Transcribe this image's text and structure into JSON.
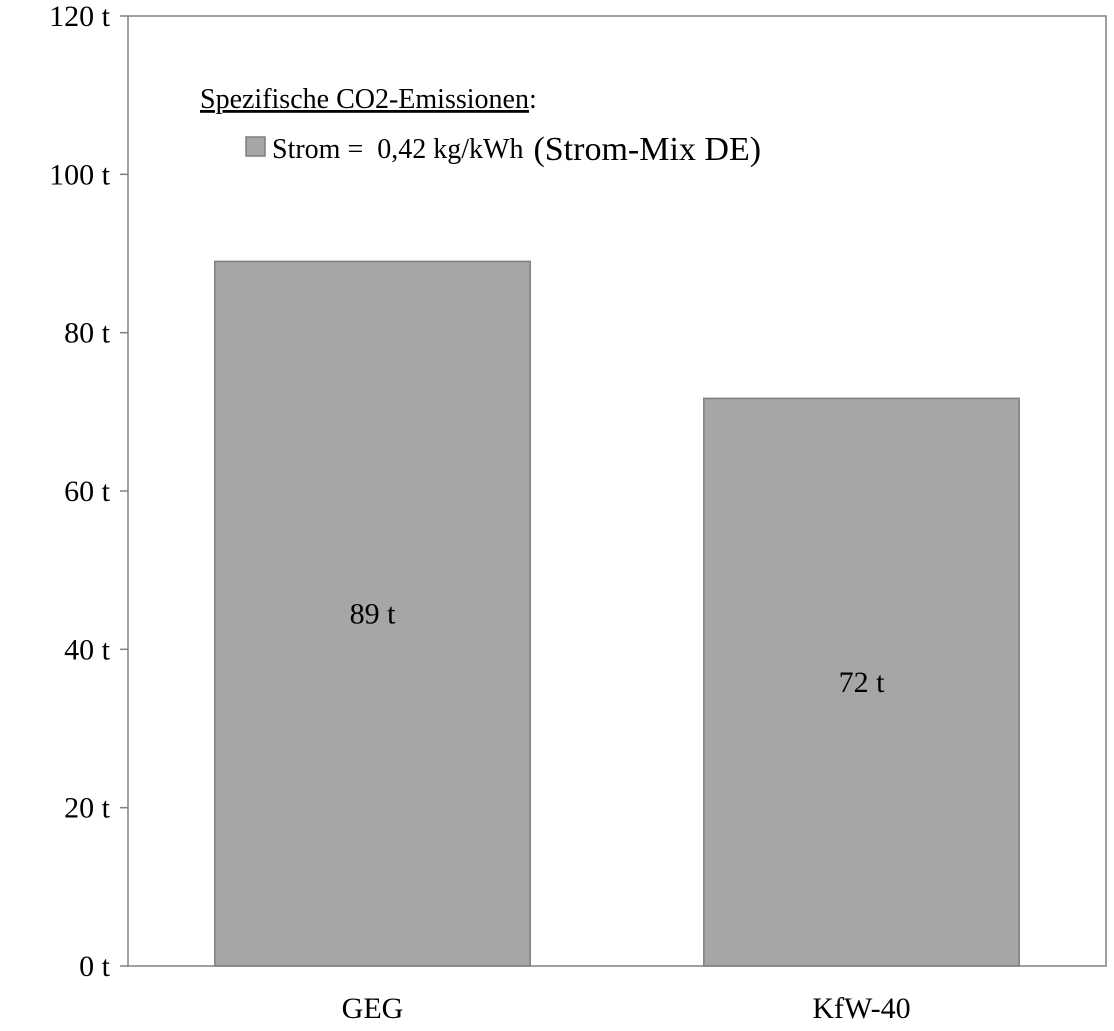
{
  "chart_data": {
    "type": "bar",
    "categories": [
      "GEG",
      "KfW-40"
    ],
    "values": [
      89,
      71.7
    ],
    "data_labels": [
      "89 t",
      "72 t"
    ],
    "ylim": [
      0,
      120
    ],
    "yticks": [
      0,
      20,
      40,
      60,
      80,
      100,
      120
    ],
    "ytick_labels": [
      "0 t",
      "20 t",
      "40 t",
      "60 t",
      "80 t",
      "100 t",
      "120 t"
    ],
    "grid": false,
    "bar_color": "#a6a6a6",
    "bar_edge_color": "#7f7f7f",
    "axis_color": "#808080",
    "legend": {
      "position": "top-left",
      "title": "Spezifische CO2-Emissionen",
      "title_suffix": ":",
      "entries": [
        {
          "label": "Strom =  0,42 kg/kWh",
          "note": "(Strom-Mix DE)",
          "color": "#a6a6a6"
        }
      ]
    }
  }
}
